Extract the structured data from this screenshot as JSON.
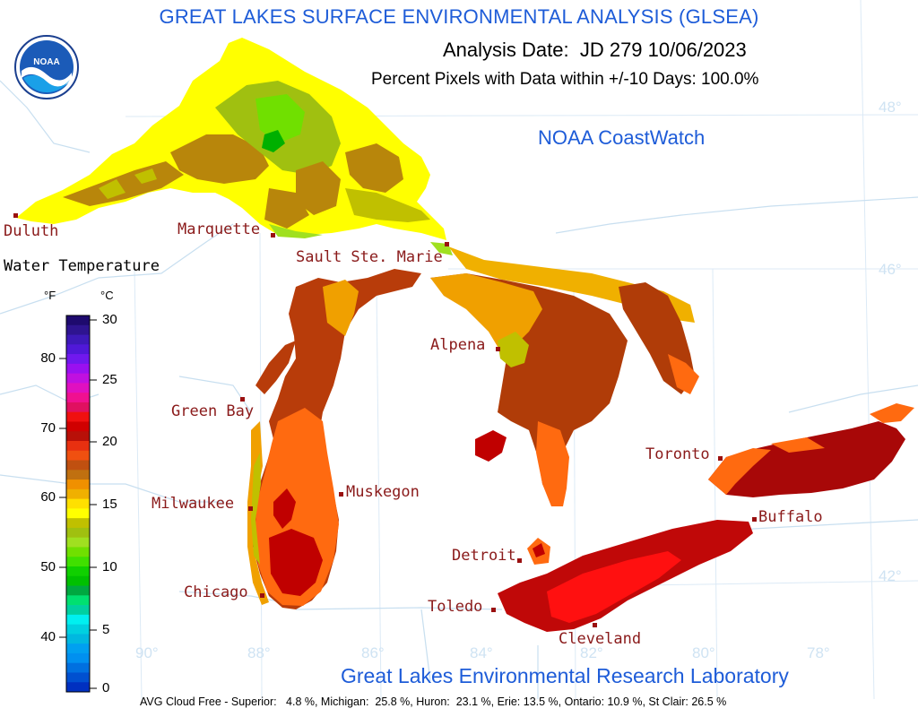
{
  "title": "GREAT LAKES SURFACE ENVIRONMENTAL ANALYSIS (GLSEA)",
  "analysis_date": "Analysis Date:  JD 279 10/06/2023",
  "percent_pixels": "Percent Pixels with Data within +/-10 Days: 100.0%",
  "coastwatch": "NOAA CoastWatch",
  "glerl": "Great Lakes Environmental Research Laboratory",
  "cloud_free": "AVG Cloud Free - Superior:   4.8 %, Michigan:  25.8 %, Huron:  23.1 %, Erie: 13.5 %, Ontario: 10.9 %, St Clair: 26.5 %",
  "logo_text": "NOAA",
  "legend": {
    "title": "Water Temperature",
    "unit_f": "°F",
    "unit_c": "°C",
    "f_ticks": [
      "80",
      "70",
      "60",
      "50",
      "40"
    ],
    "c_ticks": [
      "30",
      "25",
      "20",
      "15",
      "10",
      "5",
      "0"
    ],
    "colors": [
      "#1e0a6e",
      "#2e1490",
      "#3d19b8",
      "#5018d8",
      "#7018ee",
      "#9a10f0",
      "#c010e0",
      "#e010c0",
      "#f01090",
      "#e01060",
      "#f01010",
      "#d00000",
      "#b81008",
      "#e83010",
      "#f05010",
      "#c05010",
      "#c07010",
      "#f09000",
      "#f0b000",
      "#ffe000",
      "#ffff00",
      "#c0c000",
      "#a0c010",
      "#a0e020",
      "#70e000",
      "#40e000",
      "#10d000",
      "#00c000",
      "#00a840",
      "#00e070",
      "#00d0a0",
      "#00f0f0",
      "#00d0e0",
      "#00b8e0",
      "#00a0f0",
      "#0090f0",
      "#0070e0",
      "#0050d0",
      "#0030c0"
    ]
  },
  "lat_labels": [
    "48°",
    "46°",
    "42°"
  ],
  "lon_labels": [
    "90°",
    "88°",
    "86°",
    "84°",
    "82°",
    "80°",
    "78°"
  ],
  "cities": [
    "Duluth",
    "Marquette",
    "Sault Ste. Marie",
    "Green Bay",
    "Alpena",
    "Milwaukee",
    "Muskegon",
    "Toronto",
    "Buffalo",
    "Detroit",
    "Chicago",
    "Toledo",
    "Cleveland"
  ],
  "lake_colors": {
    "superior_main": "#ffff00",
    "superior_mid": "#b8860b",
    "superior_light_green": "#a0e020",
    "michigan_north": "#b83c0a",
    "michigan_south": "#ff6a10",
    "michigan_deep": "#c00000",
    "huron_north": "#f0a000",
    "huron_main": "#b03c08",
    "huron_bay": "#ff6a10",
    "erie": "#c00808",
    "erie_center": "#ff1010",
    "ontario": "#a80808",
    "ontario_edge": "#ff6a10",
    "land_border": "#c8dff0"
  }
}
